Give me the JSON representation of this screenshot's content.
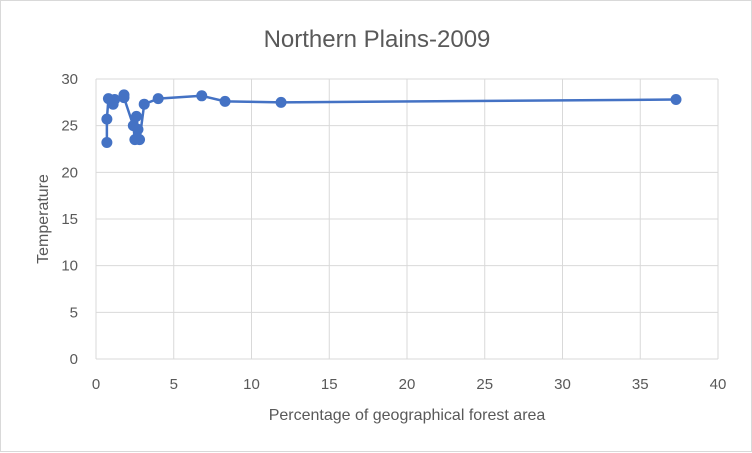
{
  "chart_data": {
    "type": "line",
    "title": "Northern Plains-2009",
    "xlabel": "Percentage of geographical forest area",
    "ylabel": "Temperature",
    "xlim": [
      0,
      40
    ],
    "ylim": [
      0,
      30
    ],
    "xticks": [
      "0",
      "5",
      "10",
      "15",
      "20",
      "25",
      "30",
      "35",
      "40"
    ],
    "yticks": [
      "0",
      "5",
      "10",
      "15",
      "20",
      "25",
      "30"
    ],
    "grid": true,
    "legend": "none",
    "series_color": "#4472c4",
    "x": [
      0.7,
      0.7,
      0.8,
      1.1,
      1.2,
      1.8,
      1.8,
      2.4,
      2.5,
      2.6,
      2.7,
      2.8,
      3.1,
      4.0,
      6.8,
      8.3,
      11.9,
      37.3
    ],
    "y": [
      23.2,
      25.7,
      27.9,
      27.3,
      27.8,
      28.3,
      28.0,
      25.0,
      23.5,
      26.0,
      24.6,
      23.5,
      27.3,
      27.9,
      28.2,
      27.6,
      27.5,
      27.8
    ]
  }
}
